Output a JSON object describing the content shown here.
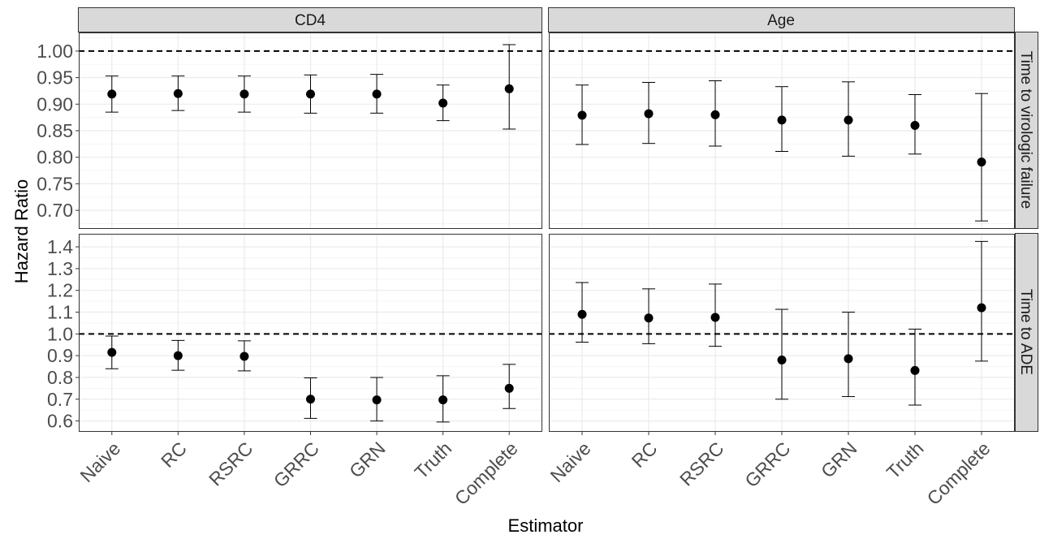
{
  "chart_data": {
    "type": "errorbar",
    "xlabel": "Estimator",
    "ylabel": "Hazard Ratio",
    "categories": [
      "Naive",
      "RC",
      "RSRC",
      "GRRC",
      "GRN",
      "Truth",
      "Complete"
    ],
    "columns": [
      "CD4",
      "Age"
    ],
    "rows": [
      "Time to virologic failure",
      "Time to ADE"
    ],
    "reference_line": 1.0,
    "grid": true,
    "panels": [
      {
        "row": 0,
        "col": 0,
        "yticks": [
          "0.70",
          "0.75",
          "0.80",
          "0.85",
          "0.90",
          "0.95",
          "1.00"
        ],
        "ylim": [
          0.665,
          1.035
        ],
        "points": [
          {
            "x": "Naive",
            "y": 0.919,
            "lo": 0.885,
            "hi": 0.953
          },
          {
            "x": "RC",
            "y": 0.92,
            "lo": 0.888,
            "hi": 0.953
          },
          {
            "x": "RSRC",
            "y": 0.919,
            "lo": 0.885,
            "hi": 0.953
          },
          {
            "x": "GRRC",
            "y": 0.919,
            "lo": 0.883,
            "hi": 0.955
          },
          {
            "x": "GRN",
            "y": 0.919,
            "lo": 0.883,
            "hi": 0.956
          },
          {
            "x": "Truth",
            "y": 0.902,
            "lo": 0.869,
            "hi": 0.936
          },
          {
            "x": "Complete",
            "y": 0.929,
            "lo": 0.853,
            "hi": 1.012
          }
        ]
      },
      {
        "row": 0,
        "col": 1,
        "yticks": [
          "0.70",
          "0.75",
          "0.80",
          "0.85",
          "0.90",
          "0.95",
          "1.00"
        ],
        "ylim": [
          0.665,
          1.035
        ],
        "points": [
          {
            "x": "Naive",
            "y": 0.879,
            "lo": 0.824,
            "hi": 0.936
          },
          {
            "x": "RC",
            "y": 0.882,
            "lo": 0.826,
            "hi": 0.941
          },
          {
            "x": "RSRC",
            "y": 0.88,
            "lo": 0.821,
            "hi": 0.944
          },
          {
            "x": "GRRC",
            "y": 0.87,
            "lo": 0.811,
            "hi": 0.933
          },
          {
            "x": "GRN",
            "y": 0.87,
            "lo": 0.802,
            "hi": 0.942
          },
          {
            "x": "Truth",
            "y": 0.86,
            "lo": 0.806,
            "hi": 0.918
          },
          {
            "x": "Complete",
            "y": 0.791,
            "lo": 0.68,
            "hi": 0.92
          }
        ]
      },
      {
        "row": 1,
        "col": 0,
        "yticks": [
          "0.6",
          "0.7",
          "0.8",
          "0.9",
          "1.0",
          "1.1",
          "1.2",
          "1.3",
          "1.4"
        ],
        "ylim": [
          0.55,
          1.46
        ],
        "points": [
          {
            "x": "Naive",
            "y": 0.915,
            "lo": 0.84,
            "hi": 0.99
          },
          {
            "x": "RC",
            "y": 0.9,
            "lo": 0.833,
            "hi": 0.97
          },
          {
            "x": "RSRC",
            "y": 0.897,
            "lo": 0.83,
            "hi": 0.968
          },
          {
            "x": "GRRC",
            "y": 0.7,
            "lo": 0.612,
            "hi": 0.798
          },
          {
            "x": "GRN",
            "y": 0.697,
            "lo": 0.6,
            "hi": 0.8
          },
          {
            "x": "Truth",
            "y": 0.697,
            "lo": 0.595,
            "hi": 0.808
          },
          {
            "x": "Complete",
            "y": 0.75,
            "lo": 0.657,
            "hi": 0.86
          }
        ]
      },
      {
        "row": 1,
        "col": 1,
        "yticks": [
          "0.6",
          "0.7",
          "0.8",
          "0.9",
          "1.0",
          "1.1",
          "1.2",
          "1.3",
          "1.4"
        ],
        "ylim": [
          0.55,
          1.46
        ],
        "points": [
          {
            "x": "Naive",
            "y": 1.09,
            "lo": 0.962,
            "hi": 1.236
          },
          {
            "x": "RC",
            "y": 1.073,
            "lo": 0.955,
            "hi": 1.207
          },
          {
            "x": "RSRC",
            "y": 1.076,
            "lo": 0.943,
            "hi": 1.229
          },
          {
            "x": "GRRC",
            "y": 0.88,
            "lo": 0.7,
            "hi": 1.113
          },
          {
            "x": "GRN",
            "y": 0.886,
            "lo": 0.712,
            "hi": 1.1
          },
          {
            "x": "Truth",
            "y": 0.832,
            "lo": 0.673,
            "hi": 1.022
          },
          {
            "x": "Complete",
            "y": 1.12,
            "lo": 0.875,
            "hi": 1.425
          }
        ]
      }
    ]
  },
  "colors": {
    "strip_fill": "#d9d9d9",
    "panel_border": "#333333",
    "grid_major": "#ebebeb",
    "grid_minor": "#f5f5f5",
    "point": "#000000",
    "text": "#1a1a1a",
    "tick_text": "#4d4d4d"
  }
}
